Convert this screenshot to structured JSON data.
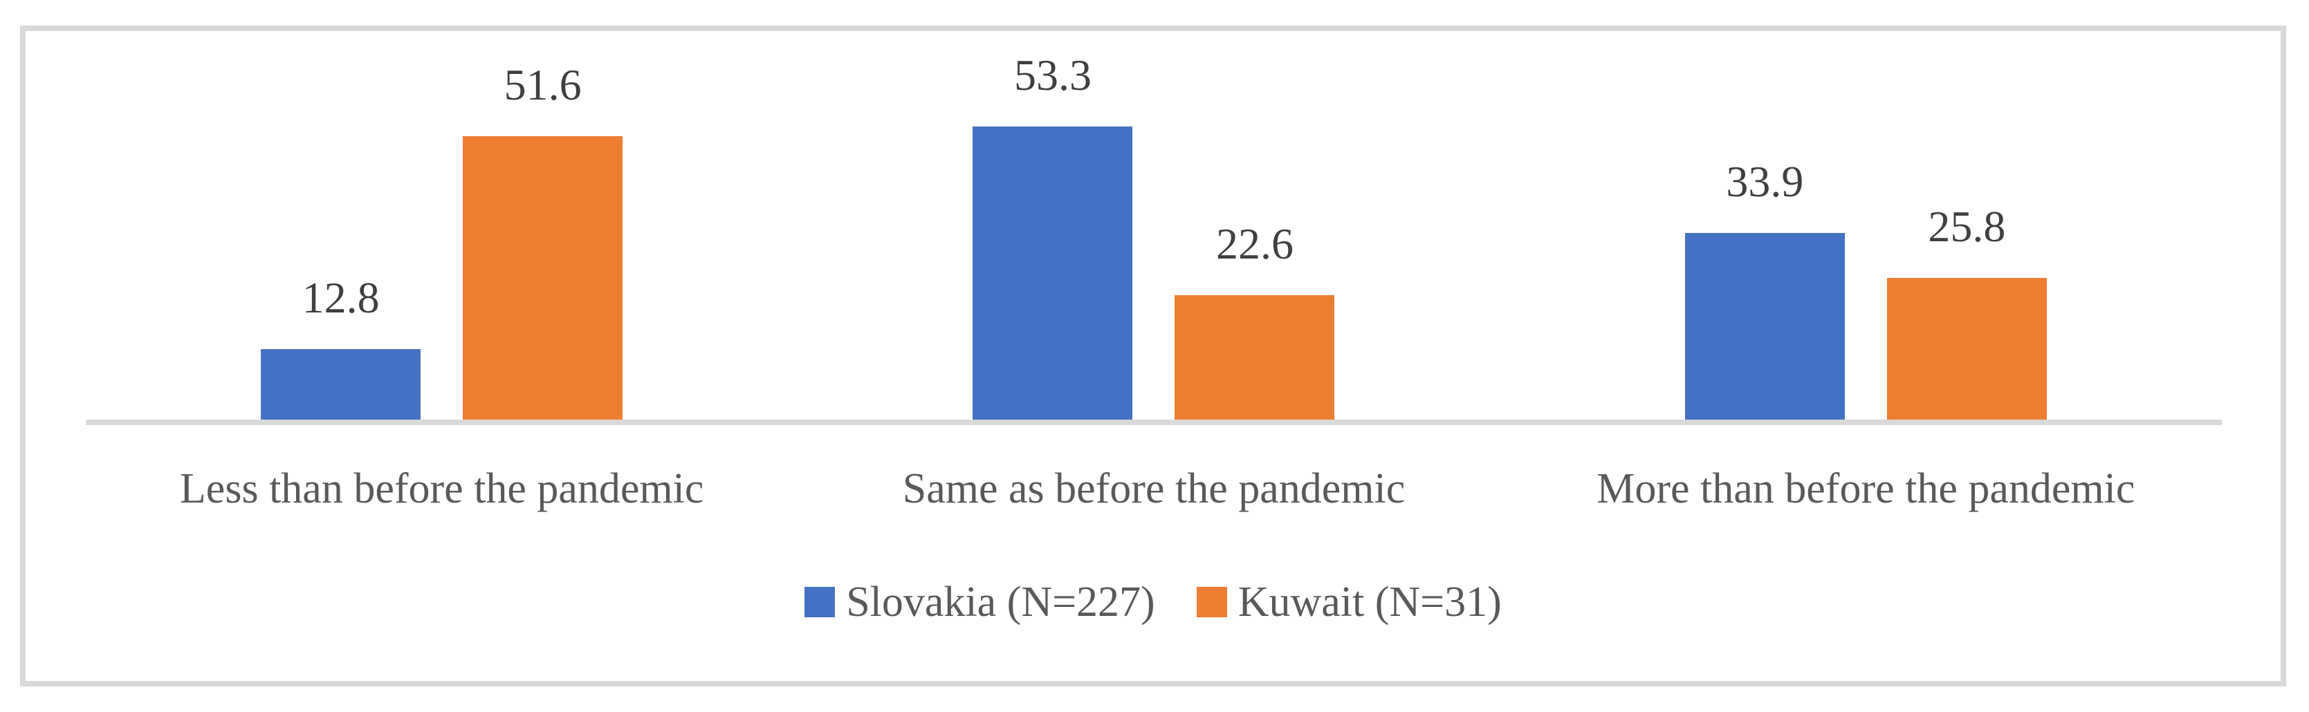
{
  "chart_data": {
    "type": "bar",
    "categories": [
      "Less than before the pandemic",
      "Same as before the pandemic",
      "More than before the pandemic"
    ],
    "series": [
      {
        "name": "Slovakia (N=227)",
        "color": "#4472C4",
        "values": [
          12.8,
          53.3,
          33.9
        ]
      },
      {
        "name": "Kuwait (N=31)",
        "color": "#ED7D31",
        "values": [
          51.6,
          22.6,
          25.8
        ]
      }
    ],
    "title": "",
    "xlabel": "",
    "ylabel": "",
    "ylim": [
      0,
      60
    ],
    "grid": false,
    "axis_visible": "x-only",
    "legend_position": "bottom-center",
    "value_labels": true,
    "value_label_decimals": 1
  },
  "style": {
    "frame_border_color": "#D9D9D9",
    "axis_line_color": "#D9D9D9",
    "background": "#FFFFFF",
    "value_label_color": "#3F3F3F",
    "category_label_color": "#595959",
    "legend_label_color": "#595959"
  }
}
